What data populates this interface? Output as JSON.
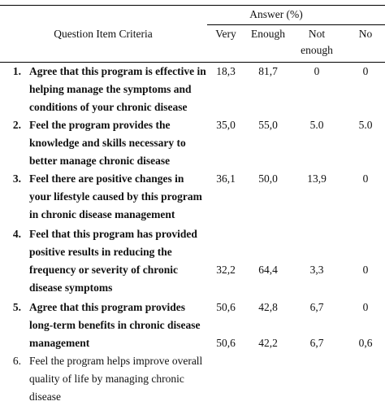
{
  "table": {
    "group_header": "Answer (%)",
    "criteria_header": "Question Item Criteria",
    "columns": [
      [
        "Very"
      ],
      [
        "Enough"
      ],
      [
        "Not",
        "enough"
      ],
      [
        "No"
      ]
    ],
    "rows": [
      {
        "number": "1.",
        "bold": true,
        "lines": [
          "Agree that this program is effective in",
          "helping manage the symptoms and",
          "conditions of your chronic disease"
        ],
        "values": [
          "18,3",
          "81,7",
          "0",
          "0"
        ],
        "value_line": 0
      },
      {
        "number": "2.",
        "bold": true,
        "lines": [
          "Feel the program provides the",
          "knowledge and skills necessary to",
          "better manage chronic disease"
        ],
        "values": [
          "35,0",
          "55,0",
          "5.0",
          "5.0"
        ],
        "value_line": 0
      },
      {
        "number": "3.",
        "bold": true,
        "lines": [
          "Feel there are positive changes in",
          "your lifestyle caused by this program",
          "in chronic disease management"
        ],
        "values": [
          "36,1",
          "50,0",
          "13,9",
          "0"
        ],
        "value_line": 0
      },
      {
        "number": "4.",
        "bold": true,
        "lines": [
          "Feel that this program has provided",
          "positive results in reducing the",
          "frequency or severity of chronic",
          "disease symptoms"
        ],
        "values": [
          "32,2",
          "64,4",
          "3,3",
          "0"
        ],
        "value_line": 2
      },
      {
        "number": "5.",
        "bold": true,
        "lines": [
          "Agree that this program provides",
          "long-term benefits in chronic disease",
          "management"
        ],
        "values": [
          "50,6",
          "42,8",
          "6,7",
          "0"
        ],
        "value_line": 0
      },
      {
        "number": "6.",
        "bold": false,
        "lines": [
          "Feel the program helps improve overall",
          "quality of life by managing chronic",
          "disease"
        ],
        "values": [
          "50,6",
          "42,2",
          "6,7",
          "0,6"
        ],
        "value_line": -1
      }
    ]
  }
}
